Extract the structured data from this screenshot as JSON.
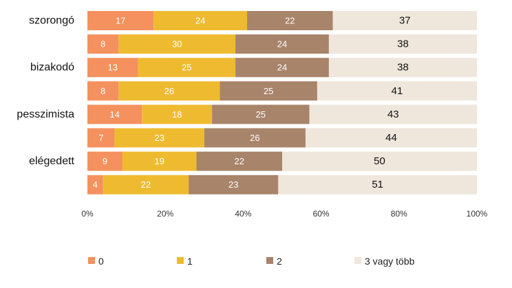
{
  "chart_data": {
    "type": "bar",
    "orientation": "horizontal",
    "stacked": "percent",
    "bar_labels": [
      "szorongó",
      "",
      "bizakodó",
      "",
      "pesszimista",
      "",
      "elégedett",
      ""
    ],
    "series": [
      {
        "name": "0",
        "color": "#F4915E",
        "values": [
          17,
          8,
          13,
          8,
          14,
          7,
          9,
          4
        ]
      },
      {
        "name": "1",
        "color": "#EEBB30",
        "values": [
          24,
          30,
          25,
          26,
          18,
          23,
          19,
          22
        ]
      },
      {
        "name": "2",
        "color": "#A8846A",
        "values": [
          22,
          24,
          24,
          25,
          25,
          26,
          22,
          23
        ]
      },
      {
        "name": "3 vagy több",
        "color": "#EFE6DC",
        "values": [
          37,
          38,
          38,
          41,
          43,
          44,
          50,
          51
        ]
      }
    ],
    "x_ticks": [
      "0%",
      "20%",
      "40%",
      "60%",
      "80%",
      "100%"
    ],
    "xlim": [
      0,
      100
    ],
    "grid": false,
    "legend_position": "bottom"
  }
}
